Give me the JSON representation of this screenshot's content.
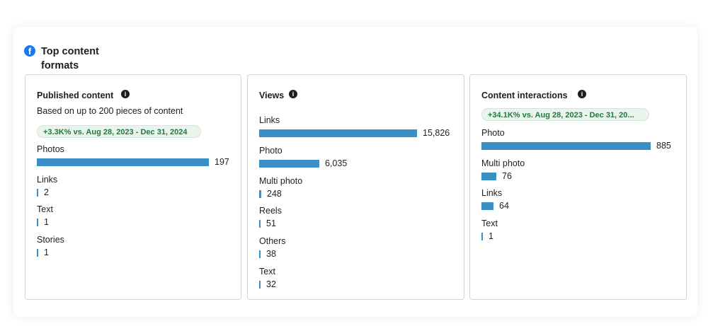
{
  "section": {
    "title": "Top content formats",
    "icon": "facebook-icon"
  },
  "panels": [
    {
      "title": "Published content",
      "subtitle": "Based on up to 200 pieces of content",
      "badge": "+3.3K% vs. Aug 28, 2023 - Dec 31, 2024",
      "max": 197,
      "rows": [
        {
          "label": "Photos",
          "value": 197,
          "display": "197"
        },
        {
          "label": "Links",
          "value": 2,
          "display": "2"
        },
        {
          "label": "Text",
          "value": 1,
          "display": "1"
        },
        {
          "label": "Stories",
          "value": 1,
          "display": "1"
        }
      ]
    },
    {
      "title": "Views",
      "subtitle": "",
      "badge": "",
      "max": 15826,
      "rows": [
        {
          "label": "Links",
          "value": 15826,
          "display": "15,826"
        },
        {
          "label": "Photo",
          "value": 6035,
          "display": "6,035"
        },
        {
          "label": "Multi photo",
          "value": 248,
          "display": "248"
        },
        {
          "label": "Reels",
          "value": 51,
          "display": "51"
        },
        {
          "label": "Others",
          "value": 38,
          "display": "38"
        },
        {
          "label": "Text",
          "value": 32,
          "display": "32"
        }
      ]
    },
    {
      "title": "Content interactions",
      "subtitle": "",
      "badge": "+34.1K% vs. Aug 28, 2023 - Dec 31, 20...",
      "max": 885,
      "rows": [
        {
          "label": "Photo",
          "value": 885,
          "display": "885"
        },
        {
          "label": "Multi photo",
          "value": 76,
          "display": "76"
        },
        {
          "label": "Links",
          "value": 64,
          "display": "64"
        },
        {
          "label": "Text",
          "value": 1,
          "display": "1"
        }
      ]
    }
  ],
  "colors": {
    "bar": "#3b8fc4",
    "badge_text": "#1e7b3a",
    "badge_bg": "#e9f5ec",
    "brand": "#1877f2"
  }
}
